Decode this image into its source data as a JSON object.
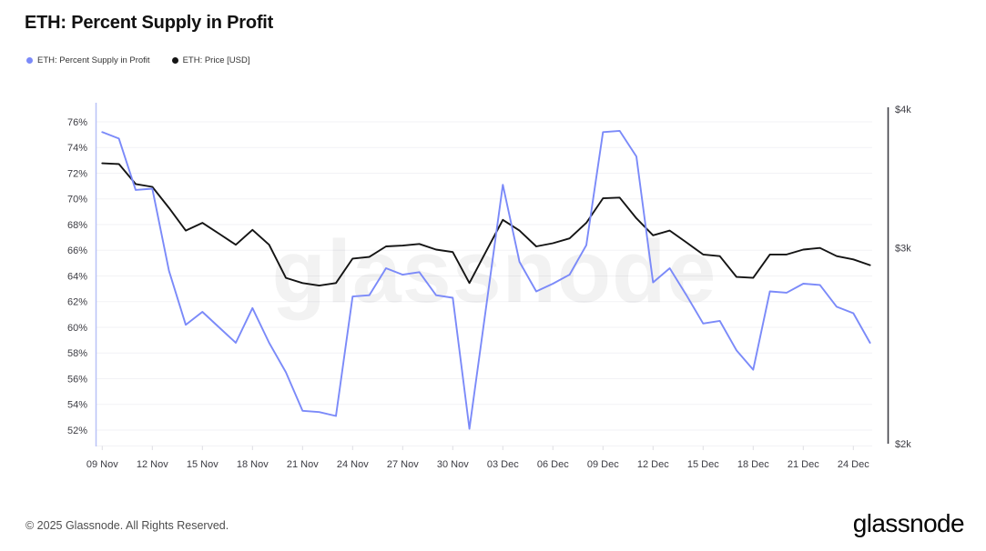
{
  "page": {
    "title": "ETH: Percent Supply in Profit",
    "watermark": "glassnode",
    "footer": {
      "copyright": "© 2025 Glassnode. All Rights Reserved.",
      "brand": "glassnode"
    }
  },
  "legend": [
    {
      "label": "ETH: Percent Supply in Profit",
      "color": "#7b8af9"
    },
    {
      "label": "ETH: Price [USD]",
      "color": "#141414"
    }
  ],
  "chart_data": {
    "type": "line",
    "title": "ETH: Percent Supply in Profit",
    "grid": true,
    "legend_position": "top-left",
    "x": [
      "09 Nov",
      "10 Nov",
      "11 Nov",
      "12 Nov",
      "13 Nov",
      "14 Nov",
      "15 Nov",
      "16 Nov",
      "17 Nov",
      "18 Nov",
      "19 Nov",
      "20 Nov",
      "21 Nov",
      "22 Nov",
      "23 Nov",
      "24 Nov",
      "25 Nov",
      "26 Nov",
      "27 Nov",
      "28 Nov",
      "29 Nov",
      "30 Nov",
      "01 Dec",
      "02 Dec",
      "03 Dec",
      "04 Dec",
      "05 Dec",
      "06 Dec",
      "07 Dec",
      "08 Dec",
      "09 Dec",
      "10 Dec",
      "11 Dec",
      "12 Dec",
      "13 Dec",
      "14 Dec",
      "15 Dec",
      "16 Dec",
      "17 Dec",
      "18 Dec",
      "19 Dec",
      "20 Dec",
      "21 Dec",
      "22 Dec",
      "23 Dec",
      "24 Dec",
      "25 Dec"
    ],
    "x_ticks": [
      "09 Nov",
      "12 Nov",
      "15 Nov",
      "18 Nov",
      "21 Nov",
      "24 Nov",
      "27 Nov",
      "30 Nov",
      "03 Dec",
      "06 Dec",
      "09 Dec",
      "12 Dec",
      "15 Dec",
      "18 Dec",
      "21 Dec",
      "24 Dec"
    ],
    "x_tick_step": 3,
    "left_axis": {
      "unit": "%",
      "min": 52,
      "max": 76,
      "ticks": [
        "76%",
        "74%",
        "72%",
        "70%",
        "68%",
        "66%",
        "64%",
        "62%",
        "60%",
        "58%",
        "56%",
        "54%",
        "52%"
      ],
      "tick_values": [
        76,
        74,
        72,
        70,
        68,
        66,
        64,
        62,
        60,
        58,
        56,
        54,
        52
      ]
    },
    "right_axis": {
      "unit": "USD",
      "scale": "log",
      "min": 2000,
      "max": 4000,
      "ticks": [
        "$4k",
        "$3k",
        "$2k"
      ],
      "tick_values": [
        4000,
        3000,
        2000
      ]
    },
    "series": [
      {
        "name": "ETH: Percent Supply in Profit",
        "axis": "left",
        "color": "#7b8af9",
        "values": [
          75.2,
          74.7,
          70.7,
          70.8,
          64.4,
          60.2,
          61.2,
          60.0,
          58.8,
          61.5,
          58.8,
          56.5,
          53.5,
          53.4,
          53.1,
          62.4,
          62.5,
          64.6,
          64.1,
          64.3,
          62.5,
          62.3,
          52.1,
          61.6,
          71.1,
          65.1,
          62.8,
          63.4,
          64.1,
          66.4,
          75.2,
          75.3,
          73.3,
          63.5,
          64.6,
          62.5,
          60.3,
          60.5,
          58.2,
          56.7,
          62.8,
          62.7,
          63.4,
          63.3,
          61.6,
          61.1,
          58.8
        ]
      },
      {
        "name": "ETH: Price [USD]",
        "axis": "right",
        "color": "#141414",
        "values": [
          3575,
          3570,
          3425,
          3405,
          3260,
          3110,
          3160,
          3090,
          3020,
          3115,
          3020,
          2820,
          2790,
          2775,
          2790,
          2935,
          2945,
          3010,
          3015,
          3025,
          2990,
          2975,
          2790,
          2980,
          3180,
          3110,
          3010,
          3030,
          3060,
          3160,
          3325,
          3330,
          3190,
          3080,
          3110,
          3035,
          2960,
          2950,
          2825,
          2820,
          2960,
          2960,
          2990,
          3000,
          2950,
          2930,
          2895
        ]
      }
    ],
    "colors": {
      "grid": "#f2f2f5",
      "left_axis_line": "#b9c2f7",
      "right_axis_line": "#3f3f46",
      "tick_label": "#3c3c43",
      "watermark": "rgba(10,10,10,0.055)"
    }
  }
}
